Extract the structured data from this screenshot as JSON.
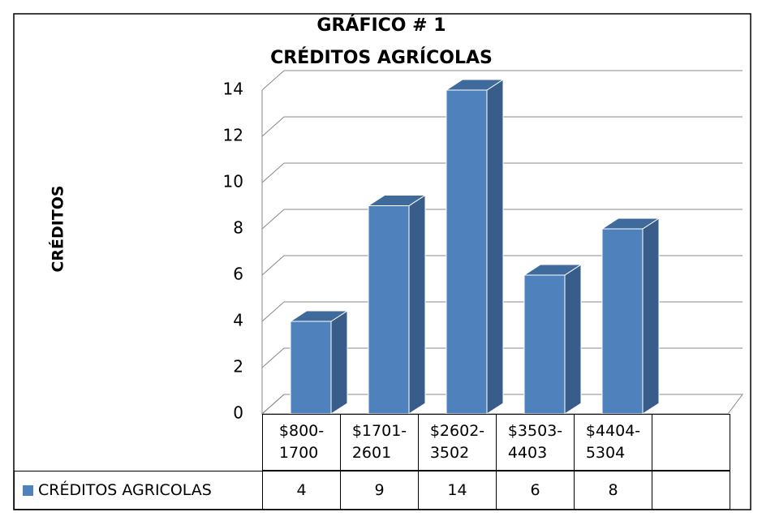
{
  "chart_data": {
    "type": "bar3d",
    "title": "GRÁFICO # 1",
    "subtitle": "CRÉDITOS AGRÍCOLAS",
    "y_label": "CRÉDITOS",
    "categories": [
      "$800-\n1700",
      "$1701-\n2601",
      "$2602-\n3502",
      "$3503-\n4403",
      "$4404-\n5304"
    ],
    "series": [
      {
        "name": "CRÉDITOS AGRICOLAS",
        "color": "#4f81bd",
        "values": [
          4,
          9,
          14,
          6,
          8
        ]
      }
    ],
    "ylim": [
      0,
      14
    ],
    "yticks": [
      0,
      2,
      4,
      6,
      8,
      10,
      12,
      14
    ],
    "grid": true,
    "data_table": true
  }
}
